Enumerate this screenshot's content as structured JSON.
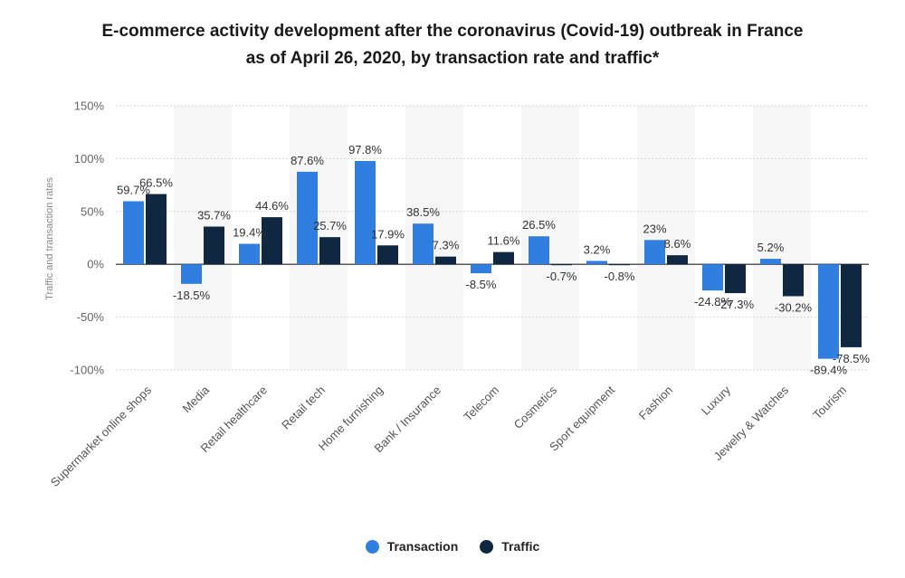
{
  "title_line1": "E-commerce activity development after the coronavirus (Covid-19) outbreak in France",
  "title_line2": "as of April 26, 2020, by transaction rate and traffic*",
  "colors": {
    "transaction": "#2f7ee0",
    "traffic": "#0f2741",
    "band": "#f6f6f6",
    "grid": "#d6d6d6"
  },
  "chart_data": {
    "type": "bar",
    "categories": [
      "Supermarket online shops",
      "Media",
      "Retail healthcare",
      "Retail tech",
      "Home furnishing",
      "Bank / Insurance",
      "Telecom",
      "Cosmetics",
      "Sport equipment",
      "Fashion",
      "Luxury",
      "Jewelry & Watches",
      "Tourism"
    ],
    "series": [
      {
        "name": "Transaction",
        "values": [
          59.7,
          -18.5,
          19.4,
          87.6,
          97.8,
          38.5,
          -8.5,
          26.5,
          3.2,
          23,
          -24.8,
          5.2,
          -89.4
        ]
      },
      {
        "name": "Traffic",
        "values": [
          66.5,
          35.7,
          44.6,
          25.7,
          17.9,
          7.3,
          11.6,
          -0.7,
          -0.8,
          8.6,
          -27.3,
          -30.2,
          -78.5
        ]
      }
    ],
    "data_labels": [
      [
        "59.7%",
        "-18.5%",
        "19.4%",
        "87.6%",
        "97.8%",
        "38.5%",
        "-8.5%",
        "26.5%",
        "3.2%",
        "23%",
        "-24.8%",
        "5.2%",
        "-89.4%"
      ],
      [
        "66.5%",
        "35.7%",
        "44.6%",
        "25.7%",
        "17.9%",
        "7.3%",
        "11.6%",
        "-0.7%",
        "-0.8%",
        "8.6%",
        "-27.3%",
        "-30.2%",
        "-78.5%"
      ]
    ],
    "ylabel": "Traffic and transaction rates",
    "xlabel": "",
    "ylim": [
      -100,
      150
    ],
    "yticks": [
      150,
      100,
      50,
      0,
      -50,
      -100
    ],
    "ytick_labels": [
      "150%",
      "100%",
      "50%",
      "0%",
      "-50%",
      "-100%"
    ],
    "grid": true,
    "legend_position": "bottom-center"
  }
}
